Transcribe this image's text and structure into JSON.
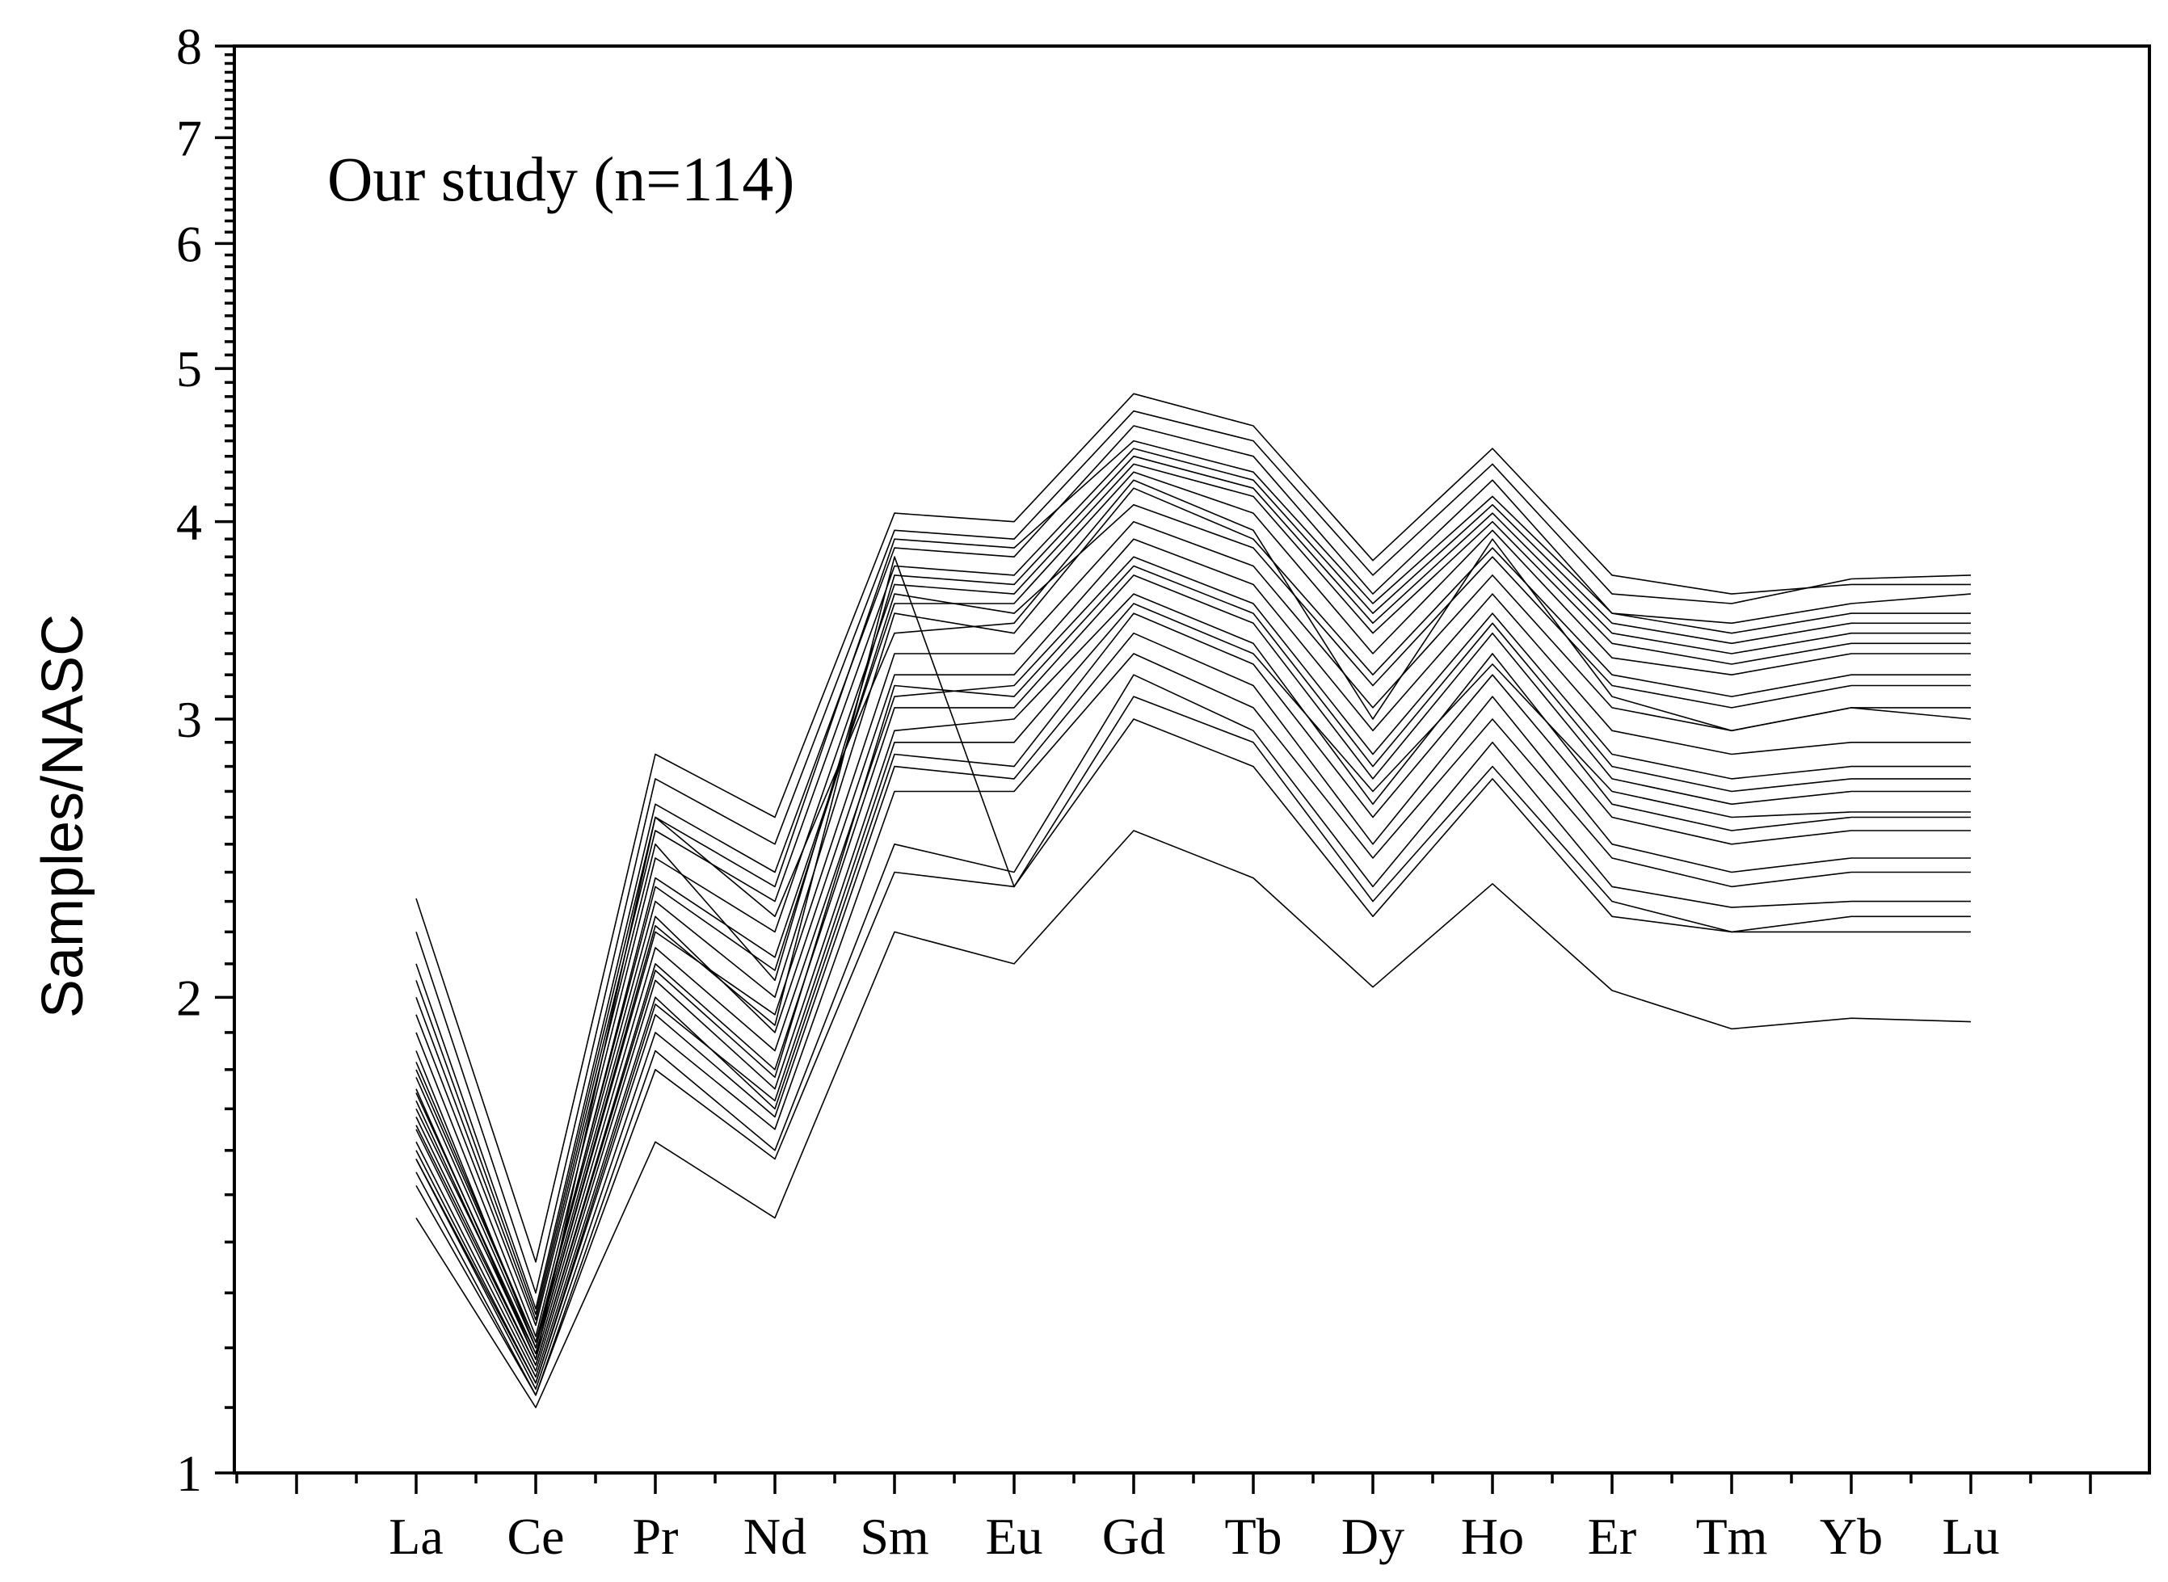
{
  "chart_data": {
    "type": "line",
    "annotation": "Our study (n=114)",
    "xlabel": "",
    "ylabel": "Samples/NASC",
    "yscale": "log",
    "ylim": [
      1,
      8
    ],
    "yticks": [
      1,
      2,
      3,
      4,
      5,
      6,
      7,
      8
    ],
    "ytick_labels": [
      "1",
      "2",
      "3",
      "4",
      "5",
      "6",
      "7",
      "8"
    ],
    "categories": [
      "La",
      "Ce",
      "Pr",
      "Nd",
      "Sm",
      "Eu",
      "Gd",
      "Tb",
      "Dy",
      "Ho",
      "Er",
      "Tm",
      "Yb",
      "Lu"
    ],
    "x_minor_slots_before": 1,
    "x_minor_slots_after": 1,
    "grid": false,
    "legend": "none",
    "line_color": "#000000",
    "series": [
      {
        "values": [
          1.75,
          1.18,
          2.6,
          2.25,
          3.4,
          3.45,
          4.25,
          3.95,
          3.0,
          3.9,
          3.1,
          2.95,
          3.05,
          3.0
        ]
      },
      {
        "values": [
          2.31,
          1.36,
          2.85,
          2.6,
          4.05,
          4.0,
          4.82,
          4.6,
          3.78,
          4.45,
          3.7,
          3.6,
          3.65,
          3.65
        ]
      },
      {
        "values": [
          2.2,
          1.3,
          2.75,
          2.5,
          3.95,
          3.9,
          4.7,
          4.5,
          3.7,
          4.35,
          3.6,
          3.55,
          3.68,
          3.7
        ]
      },
      {
        "values": [
          2.1,
          1.27,
          2.65,
          2.4,
          3.85,
          3.8,
          4.6,
          4.4,
          3.6,
          4.25,
          3.5,
          3.45,
          3.55,
          3.6
        ]
      },
      {
        "values": [
          2.0,
          1.25,
          2.55,
          2.3,
          3.75,
          3.7,
          4.45,
          4.25,
          3.5,
          4.1,
          3.45,
          3.35,
          3.45,
          3.45
        ]
      },
      {
        "values": [
          1.9,
          1.22,
          2.45,
          2.2,
          3.65,
          3.6,
          4.35,
          4.15,
          3.4,
          4.0,
          3.35,
          3.25,
          3.35,
          3.35
        ]
      },
      {
        "values": [
          1.85,
          1.2,
          2.38,
          2.12,
          3.55,
          3.55,
          4.3,
          4.05,
          3.3,
          3.95,
          3.28,
          3.2,
          3.3,
          3.3
        ]
      },
      {
        "values": [
          1.95,
          1.24,
          2.5,
          2.05,
          3.7,
          3.65,
          4.4,
          4.2,
          3.45,
          4.05,
          3.4,
          3.3,
          3.4,
          3.4
        ]
      },
      {
        "values": [
          1.8,
          1.21,
          2.3,
          2.0,
          3.5,
          3.4,
          4.2,
          3.9,
          3.2,
          3.85,
          3.2,
          3.1,
          3.2,
          3.2
        ]
      },
      {
        "values": [
          1.7,
          1.19,
          2.2,
          1.95,
          3.3,
          3.3,
          4.0,
          3.75,
          3.05,
          3.7,
          3.05,
          2.95,
          3.05,
          3.05
        ]
      },
      {
        "values": [
          1.78,
          1.2,
          2.25,
          1.9,
          3.2,
          3.2,
          3.9,
          3.65,
          2.95,
          3.6,
          2.95,
          2.85,
          2.9,
          2.9
        ]
      },
      {
        "values": [
          1.72,
          1.18,
          2.15,
          1.85,
          3.1,
          3.15,
          3.8,
          3.55,
          2.85,
          3.5,
          2.85,
          2.75,
          2.8,
          2.8
        ]
      },
      {
        "values": [
          1.68,
          1.17,
          2.1,
          1.8,
          3.05,
          3.05,
          3.7,
          3.45,
          2.75,
          3.4,
          2.75,
          2.65,
          2.7,
          2.7
        ]
      },
      {
        "values": [
          1.65,
          1.16,
          2.05,
          1.75,
          2.95,
          3.0,
          3.6,
          3.35,
          2.65,
          3.3,
          2.65,
          2.55,
          2.6,
          2.6
        ]
      },
      {
        "values": [
          1.62,
          1.15,
          2.0,
          1.7,
          2.85,
          2.8,
          3.5,
          3.25,
          2.6,
          3.2,
          2.6,
          2.5,
          2.55,
          2.55
        ]
      },
      {
        "values": [
          1.6,
          1.14,
          1.95,
          1.68,
          2.8,
          2.75,
          3.4,
          3.15,
          2.5,
          3.1,
          2.5,
          2.4,
          2.45,
          2.45
        ]
      },
      {
        "values": [
          1.58,
          1.13,
          1.9,
          1.65,
          2.7,
          2.7,
          3.3,
          3.05,
          2.45,
          3.0,
          2.45,
          2.35,
          2.4,
          2.4
        ]
      },
      {
        "values": [
          1.55,
          1.12,
          1.85,
          1.6,
          2.5,
          2.4,
          3.2,
          2.95,
          2.35,
          2.9,
          2.35,
          2.28,
          2.3,
          2.3
        ]
      },
      {
        "values": [
          1.52,
          1.12,
          1.8,
          1.58,
          2.4,
          2.35,
          3.0,
          2.8,
          2.25,
          2.75,
          2.25,
          2.2,
          2.2,
          2.2
        ]
      },
      {
        "values": [
          1.45,
          1.1,
          1.62,
          1.45,
          2.2,
          2.1,
          2.55,
          2.38,
          2.03,
          2.36,
          2.02,
          1.91,
          1.94,
          1.93
        ]
      },
      {
        "values": [
          1.74,
          1.19,
          2.22,
          1.92,
          3.8,
          2.35,
          3.1,
          2.9,
          2.3,
          2.8,
          2.3,
          2.2,
          2.25,
          2.25
        ]
      },
      {
        "values": [
          2.05,
          1.26,
          2.6,
          2.35,
          3.9,
          3.85,
          4.5,
          4.3,
          3.55,
          4.15,
          3.5,
          3.4,
          3.5,
          3.5
        ]
      },
      {
        "values": [
          1.82,
          1.21,
          2.35,
          2.08,
          3.6,
          3.5,
          4.1,
          3.85,
          3.15,
          3.8,
          3.15,
          3.05,
          3.15,
          3.15
        ]
      },
      {
        "values": [
          1.66,
          1.17,
          2.08,
          1.78,
          3.15,
          3.1,
          3.75,
          3.5,
          2.8,
          3.45,
          2.8,
          2.7,
          2.75,
          2.75
        ]
      },
      {
        "values": [
          1.58,
          1.14,
          1.98,
          1.72,
          2.9,
          2.9,
          3.55,
          3.3,
          2.7,
          3.25,
          2.7,
          2.6,
          2.62,
          2.62
        ]
      }
    ]
  }
}
